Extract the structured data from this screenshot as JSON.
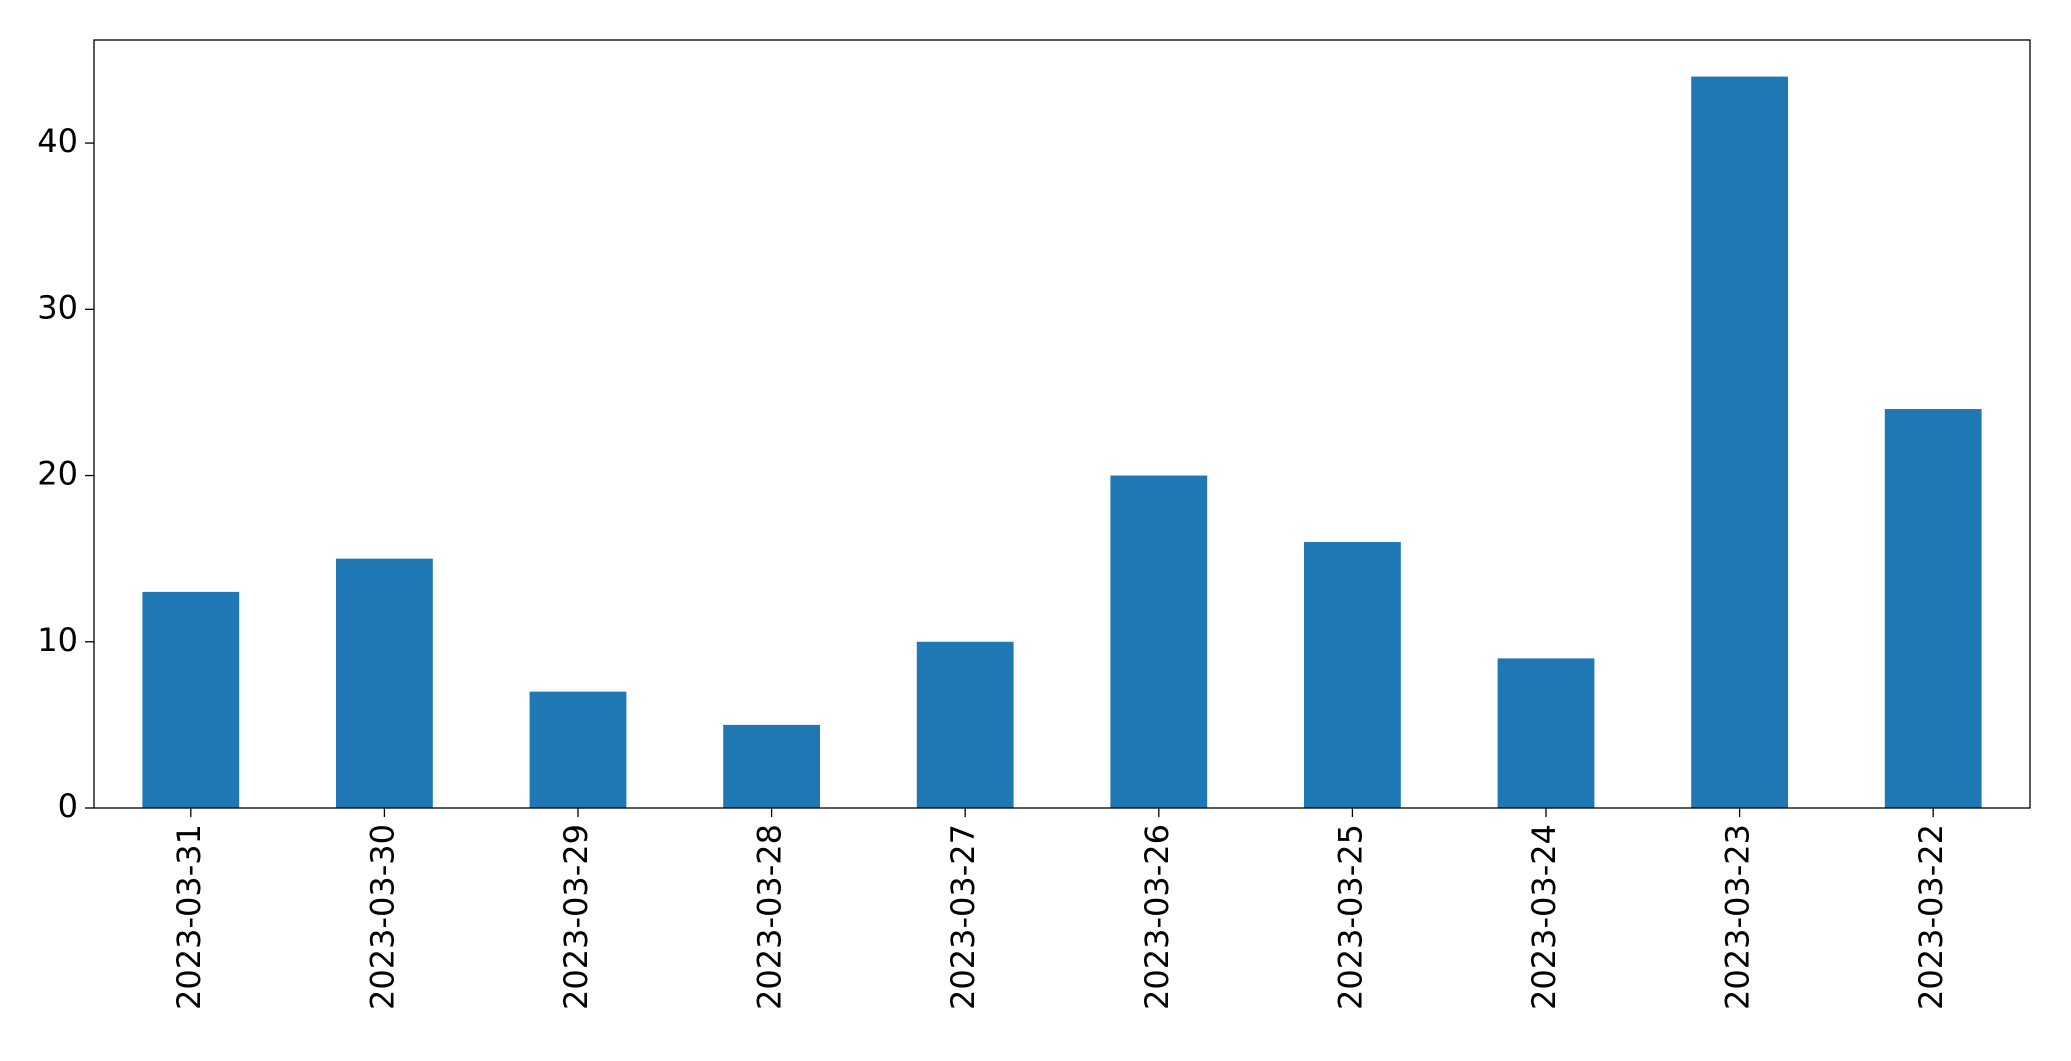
{
  "chart_data": {
    "type": "bar",
    "categories": [
      "2023-03-31",
      "2023-03-30",
      "2023-03-29",
      "2023-03-28",
      "2023-03-27",
      "2023-03-26",
      "2023-03-25",
      "2023-03-24",
      "2023-03-23",
      "2023-03-22"
    ],
    "values": [
      13,
      15,
      7,
      5,
      10,
      20,
      16,
      9,
      44,
      24
    ],
    "color": "#1f77b4",
    "ylim": [
      0,
      46.2
    ],
    "yticks": [
      0,
      10,
      20,
      30,
      40
    ],
    "grid": false
  }
}
